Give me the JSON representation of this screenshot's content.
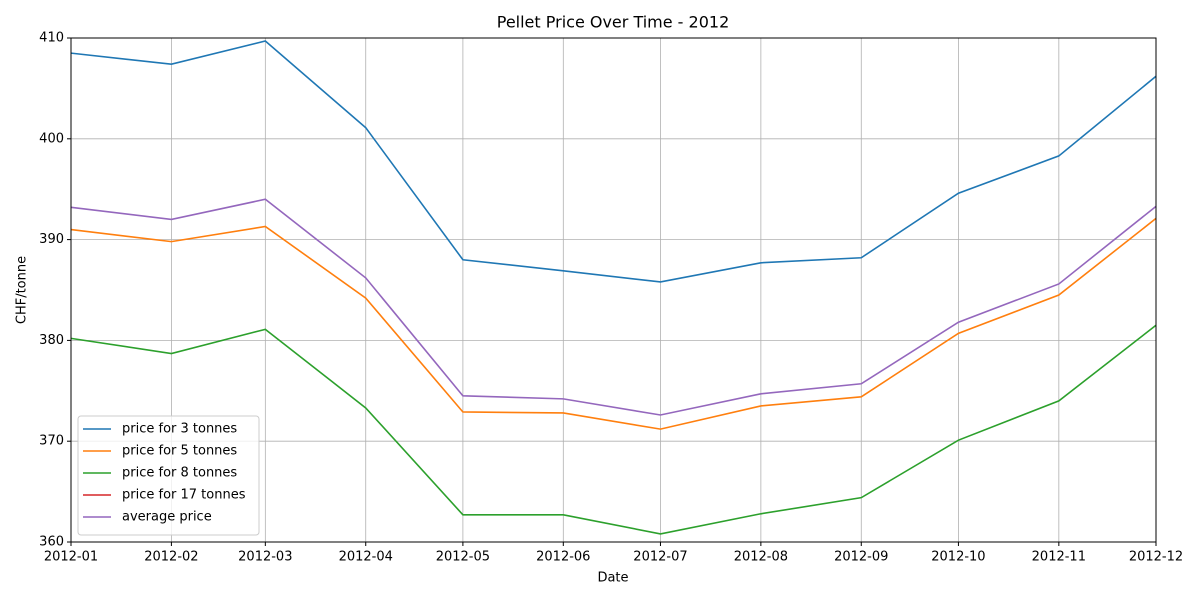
{
  "chart_data": {
    "type": "line",
    "title": "Pellet Price Over Time - 2012",
    "xlabel": "Date",
    "ylabel": "CHF/tonne",
    "x": [
      "2012-01",
      "2012-02",
      "2012-03",
      "2012-04",
      "2012-05",
      "2012-06",
      "2012-07",
      "2012-08",
      "2012-09",
      "2012-10",
      "2012-11",
      "2012-12"
    ],
    "series": [
      {
        "name": "price for 3 tonnes",
        "color": "#1f77b4",
        "values": [
          408.5,
          407.4,
          409.7,
          401.1,
          388.0,
          386.9,
          385.8,
          387.7,
          388.2,
          394.6,
          398.3,
          406.2
        ]
      },
      {
        "name": "price for 5 tonnes",
        "color": "#ff7f0e",
        "values": [
          391.0,
          389.8,
          391.3,
          384.2,
          372.9,
          372.8,
          371.2,
          373.5,
          374.4,
          380.7,
          384.5,
          392.1
        ]
      },
      {
        "name": "price for 8 tonnes",
        "color": "#2ca02c",
        "values": [
          380.2,
          378.7,
          381.1,
          373.3,
          362.7,
          362.7,
          360.8,
          362.8,
          364.4,
          370.1,
          374.0,
          381.5
        ]
      },
      {
        "name": "price for 17 tonnes",
        "color": "#d62728",
        "values": [
          null,
          null,
          null,
          null,
          null,
          null,
          null,
          null,
          null,
          null,
          null,
          null
        ]
      },
      {
        "name": "average price",
        "color": "#9467bd",
        "values": [
          393.2,
          392.0,
          394.0,
          386.2,
          374.5,
          374.2,
          372.6,
          374.7,
          375.7,
          381.8,
          385.6,
          393.3
        ]
      }
    ],
    "xlim": [
      "2012-01",
      "2012-12"
    ],
    "xticks": [
      "2012-01",
      "2012-02",
      "2012-03",
      "2012-04",
      "2012-05",
      "2012-06",
      "2012-07",
      "2012-08",
      "2012-09",
      "2012-10",
      "2012-11",
      "2012-12"
    ],
    "ylim": [
      360,
      410
    ],
    "yticks": [
      360,
      370,
      380,
      390,
      400,
      410
    ],
    "grid": true,
    "legend": "lower left"
  }
}
